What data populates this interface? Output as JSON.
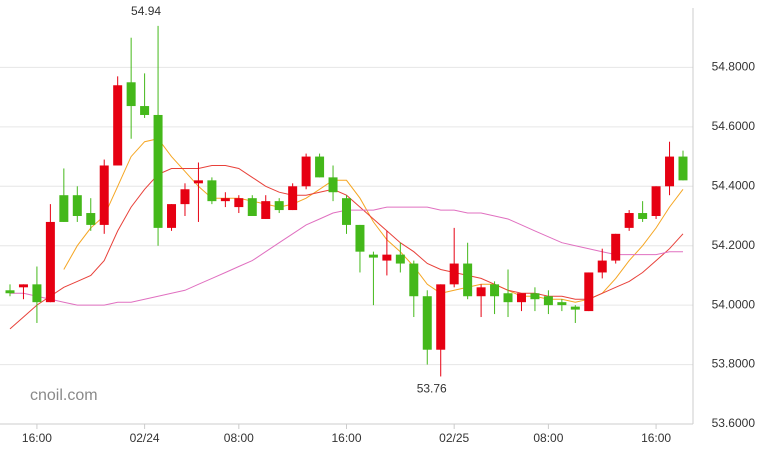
{
  "chart_data": {
    "type": "candlestick",
    "watermark": "cnoil.com",
    "categories": [
      null,
      null,
      "16:00",
      null,
      null,
      null,
      null,
      null,
      null,
      null,
      "02/24",
      null,
      null,
      null,
      null,
      null,
      null,
      "08:00",
      null,
      null,
      null,
      null,
      null,
      null,
      null,
      "16:00",
      null,
      null,
      null,
      null,
      null,
      null,
      null,
      "02/25",
      null,
      null,
      null,
      null,
      null,
      null,
      "08:00",
      null,
      null,
      null,
      null,
      null,
      null,
      null,
      "16:00",
      null,
      null
    ],
    "up_color": "#e60012",
    "down_color": "#44b81a",
    "open": [
      54.05,
      54.06,
      54.07,
      54.01,
      54.37,
      54.37,
      54.31,
      54.27,
      54.47,
      54.75,
      54.67,
      54.64,
      54.26,
      54.34,
      54.41,
      54.42,
      54.35,
      54.33,
      54.36,
      54.29,
      54.35,
      54.32,
      54.4,
      54.5,
      54.43,
      54.36,
      54.27,
      54.17,
      54.15,
      54.17,
      54.14,
      54.03,
      53.85,
      54.07,
      54.14,
      54.03,
      54.07,
      54.04,
      54.01,
      54.04,
      54.03,
      54.01,
      53.995,
      53.98,
      54.11,
      54.15,
      54.26,
      54.31,
      54.3,
      54.4,
      54.5
    ],
    "high": [
      54.07,
      54.07,
      54.13,
      54.34,
      54.46,
      54.4,
      54.36,
      54.49,
      54.77,
      54.9,
      54.78,
      54.94,
      54.34,
      54.41,
      54.48,
      54.43,
      54.38,
      54.37,
      54.37,
      54.37,
      54.36,
      54.41,
      54.51,
      54.51,
      54.47,
      54.37,
      54.27,
      54.18,
      54.25,
      54.21,
      54.15,
      54.05,
      54.07,
      54.26,
      54.21,
      54.07,
      54.08,
      54.12,
      54.04,
      54.06,
      54.05,
      54.02,
      54.0,
      54.11,
      54.19,
      54.24,
      54.32,
      54.35,
      54.4,
      54.55,
      54.52
    ],
    "low": [
      54.03,
      54.02,
      53.94,
      54.01,
      54.28,
      54.28,
      54.25,
      54.24,
      54.47,
      54.56,
      54.63,
      54.2,
      54.25,
      54.3,
      54.28,
      54.34,
      54.33,
      54.31,
      54.3,
      54.29,
      54.31,
      54.32,
      54.39,
      54.43,
      54.35,
      54.24,
      54.11,
      54.0,
      54.1,
      54.11,
      53.96,
      53.8,
      53.76,
      54.06,
      54.02,
      53.96,
      53.97,
      53.96,
      53.98,
      53.98,
      53.97,
      53.98,
      53.94,
      53.98,
      54.09,
      54.14,
      54.25,
      54.28,
      54.29,
      54.37,
      54.42
    ],
    "close": [
      54.04,
      54.07,
      54.01,
      54.28,
      54.28,
      54.3,
      54.27,
      54.47,
      54.74,
      54.67,
      54.64,
      54.26,
      54.34,
      54.39,
      54.42,
      54.35,
      54.36,
      54.36,
      54.3,
      54.35,
      54.32,
      54.4,
      54.5,
      54.43,
      54.38,
      54.27,
      54.18,
      54.16,
      54.17,
      54.14,
      54.03,
      53.85,
      54.07,
      54.14,
      54.03,
      54.06,
      54.03,
      54.01,
      54.04,
      54.02,
      54.0,
      54.0,
      53.985,
      54.11,
      54.15,
      54.24,
      54.31,
      54.29,
      54.4,
      54.5,
      54.42
    ],
    "series": [
      {
        "color": "#f5a623",
        "values": [
          null,
          null,
          null,
          null,
          54.12,
          54.2,
          54.26,
          54.3,
          54.4,
          54.5,
          54.55,
          54.56,
          54.5,
          54.45,
          54.4,
          54.36,
          54.36,
          54.36,
          54.35,
          54.34,
          54.33,
          54.34,
          54.36,
          54.39,
          54.42,
          54.42,
          54.36,
          54.28,
          54.22,
          54.18,
          54.13,
          54.07,
          54.04,
          54.05,
          54.06,
          54.07,
          54.07,
          54.05,
          54.03,
          54.03,
          54.02,
          54.02,
          54.01,
          54.02,
          54.04,
          54.09,
          54.15,
          54.2,
          54.26,
          54.33,
          54.39
        ]
      },
      {
        "color": "#e8413a",
        "values": [
          53.92,
          53.96,
          54.0,
          54.03,
          54.06,
          54.08,
          54.1,
          54.15,
          54.25,
          54.33,
          54.39,
          54.44,
          54.46,
          54.46,
          54.46,
          54.47,
          54.47,
          54.46,
          54.43,
          54.4,
          54.38,
          54.37,
          54.37,
          54.38,
          54.39,
          54.37,
          54.33,
          54.29,
          54.25,
          54.21,
          54.18,
          54.14,
          54.12,
          54.11,
          54.1,
          54.09,
          54.07,
          54.05,
          54.04,
          54.04,
          54.03,
          54.03,
          54.02,
          54.02,
          54.04,
          54.06,
          54.08,
          54.11,
          54.15,
          54.19,
          54.24
        ]
      },
      {
        "color": "#e070c0",
        "values": [
          54.04,
          54.04,
          54.03,
          54.02,
          54.01,
          54.0,
          54.0,
          54.0,
          54.01,
          54.01,
          54.02,
          54.03,
          54.04,
          54.05,
          54.07,
          54.09,
          54.11,
          54.13,
          54.15,
          54.18,
          54.21,
          54.24,
          54.27,
          54.29,
          54.31,
          54.32,
          54.32,
          54.32,
          54.33,
          54.33,
          54.33,
          54.33,
          54.32,
          54.32,
          54.31,
          54.31,
          54.3,
          54.29,
          54.27,
          54.25,
          54.23,
          54.21,
          54.2,
          54.19,
          54.18,
          54.17,
          54.17,
          54.17,
          54.17,
          54.18,
          54.18
        ]
      }
    ],
    "annotations": [
      "54.94",
      "53.76"
    ],
    "ylim": [
      53.6,
      55.0
    ],
    "yticks": [
      {
        "value": 53.6,
        "label": "53.6000"
      },
      {
        "value": 53.8,
        "label": "53.8000"
      },
      {
        "value": 54.0,
        "label": "54.0000"
      },
      {
        "value": 54.2,
        "label": "54.2000"
      },
      {
        "value": 54.4,
        "label": "54.4000"
      },
      {
        "value": 54.6,
        "label": "54.6000"
      },
      {
        "value": 54.8,
        "label": "54.8000"
      }
    ],
    "grid": true
  }
}
